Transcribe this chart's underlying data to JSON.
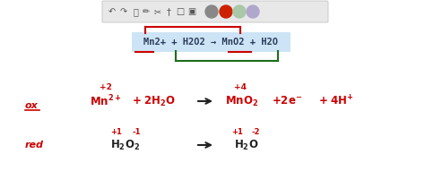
{
  "bg_color": "#ffffff",
  "toolbar_bg": "#e8e8e8",
  "red": "#cc0000",
  "green": "#1a6e1a",
  "dark": "#2a3a5a",
  "black": "#222222",
  "eq_bg": "#cce4f5",
  "eq_text": "Mn2+ + H2O2 → MnO2 + H2O",
  "toolbar_circle_colors": [
    "#888888",
    "#cc2200",
    "#a8c8a8",
    "#b0a8cc"
  ],
  "figsize": [
    4.74,
    2.1
  ],
  "dpi": 100
}
